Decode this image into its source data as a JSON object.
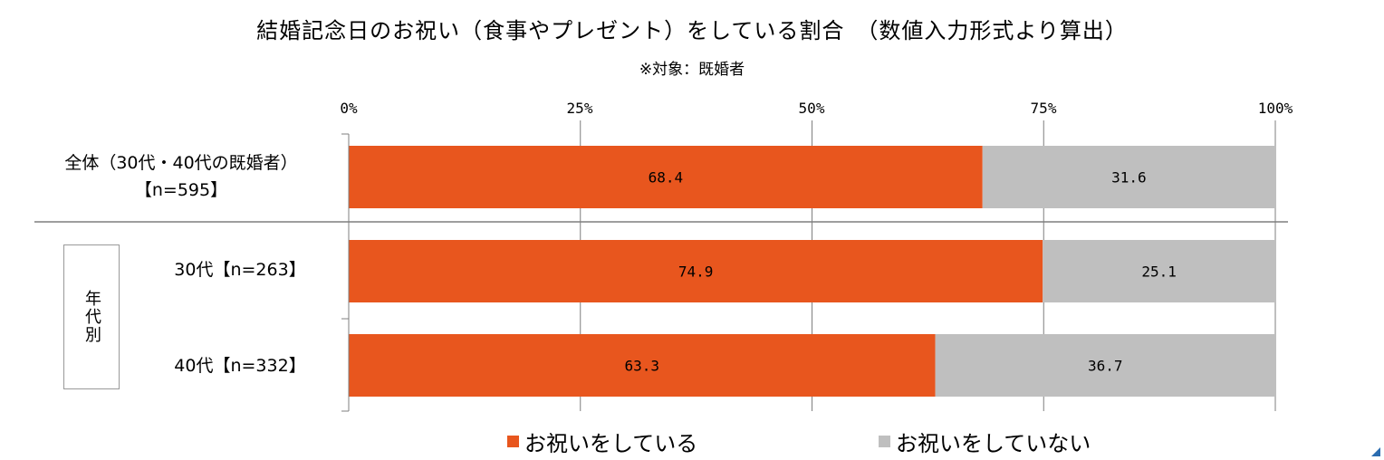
{
  "title": "結婚記念日のお祝い（食事やプレゼント）をしている割合　（数値入力形式より算出）",
  "subtitle": "※対象：既婚者",
  "group_label": "年代別",
  "colors": {
    "celebrate": "#E8561E",
    "not_celebrate": "#BFBFBF",
    "grid": "#7F7F7F"
  },
  "chart_data": {
    "type": "bar",
    "orientation": "horizontal",
    "stacked": true,
    "percent": true,
    "xlim": [
      0,
      100
    ],
    "x_ticks": [
      "0%",
      "25%",
      "50%",
      "75%",
      "100%"
    ],
    "x_tick_values": [
      0,
      25,
      50,
      75,
      100
    ],
    "categories": [
      {
        "line1": "全体（30代・40代の既婚者）",
        "line2": "【n=595】"
      },
      {
        "line1": "30代【n=263】",
        "line2": ""
      },
      {
        "line1": "40代【n=332】",
        "line2": ""
      }
    ],
    "series": [
      {
        "name": "お祝いをしている",
        "values": [
          68.4,
          74.9,
          63.3
        ],
        "labels": [
          "68.4",
          "74.9",
          "63.3"
        ]
      },
      {
        "name": "お祝いをしていない",
        "values": [
          31.6,
          25.1,
          36.7
        ],
        "labels": [
          "31.6",
          "25.1",
          "36.7"
        ]
      }
    ],
    "grid": true,
    "legend_position": "bottom"
  }
}
